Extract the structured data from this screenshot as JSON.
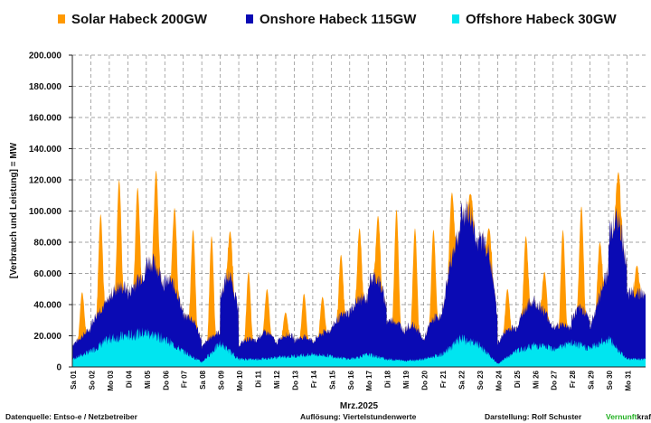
{
  "footer": {
    "source": "Datenquelle: Entso-e  / Netzbetreiber",
    "resolution": "Auflösung: Viertelstundenwerte",
    "author": "Darstellung:  Rolf Schuster",
    "brand_green": "Vernunft",
    "brand_rest": "kraft"
  },
  "chart_data": {
    "type": "area",
    "title": "",
    "xlabel": "Mrz.2025",
    "ylabel": "[Verbrauch und Leistung] =  MW",
    "ylim": [
      0,
      200000
    ],
    "yticks": [
      "0",
      "20.000",
      "40.000",
      "60.000",
      "80.000",
      "100.000",
      "120.000",
      "140.000",
      "160.000",
      "180.000",
      "200.000"
    ],
    "grid": true,
    "legend_position": "top",
    "categories": [
      "Sa 01",
      "So 02",
      "Mo 03",
      "Di 04",
      "Mi 05",
      "Do 06",
      "Fr 07",
      "Sa 08",
      "So 09",
      "Mo 10",
      "Di 11",
      "Mi 12",
      "Do 13",
      "Fr 14",
      "Sa 15",
      "So 16",
      "Mo 17",
      "Di 18",
      "Mi 19",
      "Do 20",
      "Fr 21",
      "Sa 22",
      "So 23",
      "Mo 24",
      "Di 25",
      "Mi 26",
      "Do 27",
      "Fr 28",
      "Sa 29",
      "So 30",
      "Mo 31"
    ],
    "series": [
      {
        "name": "Solar Habeck 200GW",
        "color": "#ff9900",
        "daily_peak_total": [
          48000,
          98000,
          120000,
          115000,
          126000,
          102000,
          88000,
          84000,
          87000,
          61000,
          50000,
          35000,
          47000,
          45000,
          72000,
          89000,
          97000,
          101000,
          89000,
          88000,
          112000,
          111000,
          89000,
          50000,
          84000,
          61000,
          88000,
          103000,
          80000,
          125000,
          65000
        ],
        "night_level_total": [
          14000,
          28000,
          40000,
          45000,
          60000,
          45000,
          25000,
          10000,
          25000,
          10000,
          12000,
          12000,
          14000,
          14000,
          22000,
          32000,
          40000,
          25000,
          18000,
          10000,
          28000,
          80000,
          60000,
          10000,
          22000,
          38000,
          25000,
          25000,
          25000,
          60000,
          40000
        ]
      },
      {
        "name": "Onshore Habeck 115GW",
        "color": "#0a0ab4",
        "daily_peak": [
          14000,
          30000,
          50000,
          48000,
          75000,
          65000,
          40000,
          15000,
          70000,
          18000,
          25000,
          20000,
          20000,
          18000,
          28000,
          40000,
          68000,
          34000,
          32000,
          25000,
          45000,
          113000,
          105000,
          20000,
          30000,
          45000,
          28000,
          40000,
          27000,
          110000,
          50000
        ],
        "night_level": [
          14000,
          25000,
          40000,
          45000,
          60000,
          45000,
          25000,
          10000,
          20000,
          10000,
          12000,
          10000,
          14000,
          14000,
          22000,
          32000,
          40000,
          25000,
          18000,
          10000,
          25000,
          80000,
          60000,
          10000,
          20000,
          38000,
          22000,
          22000,
          22000,
          60000,
          40000
        ]
      },
      {
        "name": "Offshore Habeck 30GW",
        "color": "#00e5f0",
        "level": [
          5000,
          10000,
          18000,
          20000,
          22000,
          18000,
          10000,
          3000,
          15000,
          5000,
          5000,
          6000,
          7000,
          8000,
          7000,
          5000,
          8000,
          5000,
          4000,
          5000,
          8000,
          18000,
          14000,
          2000,
          10000,
          14000,
          12000,
          15000,
          12000,
          18000,
          5000
        ]
      }
    ]
  }
}
